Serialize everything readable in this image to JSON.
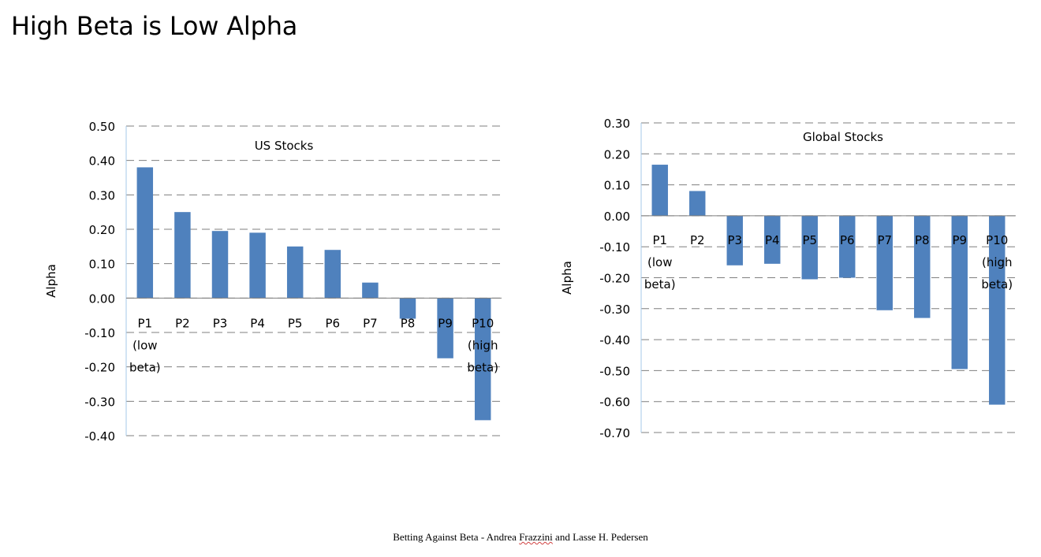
{
  "slide": {
    "title": "High Beta is Low Alpha",
    "footer_prefix": "Betting Against Beta - Andrea ",
    "footer_underlined": "Frazzini",
    "footer_suffix": " and Lasse H. Pedersen"
  },
  "colors": {
    "bar": "#4F81BD",
    "gridline": "#7F7F7F",
    "axis": "#A6C8E8"
  },
  "chart_data": [
    {
      "type": "bar",
      "title": "US Stocks",
      "xlabel": "",
      "ylabel": "Alpha",
      "categories": [
        "P1 (low beta)",
        "P2",
        "P3",
        "P4",
        "P5",
        "P6",
        "P7",
        "P8",
        "P9",
        "P10 (high beta)"
      ],
      "category_lines": [
        [
          "P1",
          "(low",
          "beta)"
        ],
        [
          "P2"
        ],
        [
          "P3"
        ],
        [
          "P4"
        ],
        [
          "P5"
        ],
        [
          "P6"
        ],
        [
          "P7"
        ],
        [
          "P8"
        ],
        [
          "P9"
        ],
        [
          "P10",
          "(high",
          "beta)"
        ]
      ],
      "values": [
        0.38,
        0.25,
        0.195,
        0.19,
        0.15,
        0.14,
        0.045,
        -0.06,
        -0.175,
        -0.355
      ],
      "ylim": [
        -0.4,
        0.5
      ],
      "yticks": [
        "0.50",
        "0.40",
        "0.30",
        "0.20",
        "0.10",
        "0.00",
        "-0.10",
        "-0.20",
        "-0.30",
        "-0.40"
      ],
      "grid": true
    },
    {
      "type": "bar",
      "title": "Global Stocks",
      "xlabel": "",
      "ylabel": "Alpha",
      "categories": [
        "P1 (low beta)",
        "P2",
        "P3",
        "P4",
        "P5",
        "P6",
        "P7",
        "P8",
        "P9",
        "P10 (high beta)"
      ],
      "category_lines": [
        [
          "P1",
          "(low",
          "beta)"
        ],
        [
          "P2"
        ],
        [
          "P3"
        ],
        [
          "P4"
        ],
        [
          "P5"
        ],
        [
          "P6"
        ],
        [
          "P7"
        ],
        [
          "P8"
        ],
        [
          "P9"
        ],
        [
          "P10",
          "(high",
          "beta)"
        ]
      ],
      "values": [
        0.165,
        0.08,
        -0.16,
        -0.155,
        -0.205,
        -0.2,
        -0.305,
        -0.33,
        -0.495,
        -0.61
      ],
      "ylim": [
        -0.7,
        0.3
      ],
      "yticks": [
        "0.30",
        "0.20",
        "0.10",
        "0.00",
        "-0.10",
        "-0.20",
        "-0.30",
        "-0.40",
        "-0.50",
        "-0.60",
        "-0.70"
      ],
      "grid": true
    }
  ]
}
